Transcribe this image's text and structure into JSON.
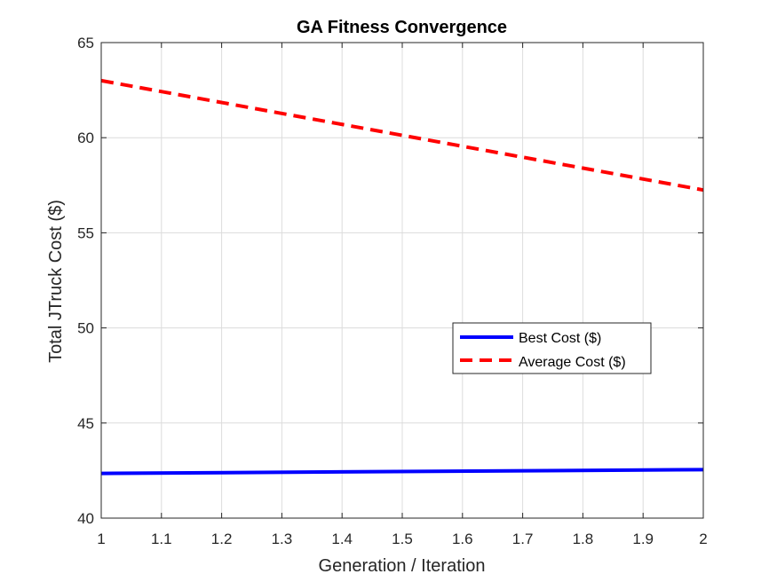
{
  "chart_data": {
    "type": "line",
    "title": "GA Fitness Convergence",
    "xlabel": "Generation / Iteration",
    "ylabel": "Total JTruck Cost ($)",
    "xlim": [
      1,
      2
    ],
    "ylim": [
      40,
      65
    ],
    "xticks": [
      1,
      1.1,
      1.2,
      1.3,
      1.4,
      1.5,
      1.6,
      1.7,
      1.8,
      1.9,
      2
    ],
    "xtick_labels": [
      "1",
      "1.1",
      "1.2",
      "1.3",
      "1.4",
      "1.5",
      "1.6",
      "1.7",
      "1.8",
      "1.9",
      "2"
    ],
    "yticks": [
      40,
      45,
      50,
      55,
      60,
      65
    ],
    "ytick_labels": [
      "40",
      "45",
      "50",
      "55",
      "60",
      "65"
    ],
    "grid": true,
    "legend_position": "center-right",
    "series": [
      {
        "name": "Best Cost ($)",
        "x": [
          1,
          2
        ],
        "y": [
          42.35,
          42.55
        ],
        "color": "#0000ff",
        "style": "solid"
      },
      {
        "name": "Average Cost ($)",
        "x": [
          1,
          2
        ],
        "y": [
          63.0,
          57.25
        ],
        "color": "#ff0000",
        "style": "dashed"
      }
    ]
  }
}
